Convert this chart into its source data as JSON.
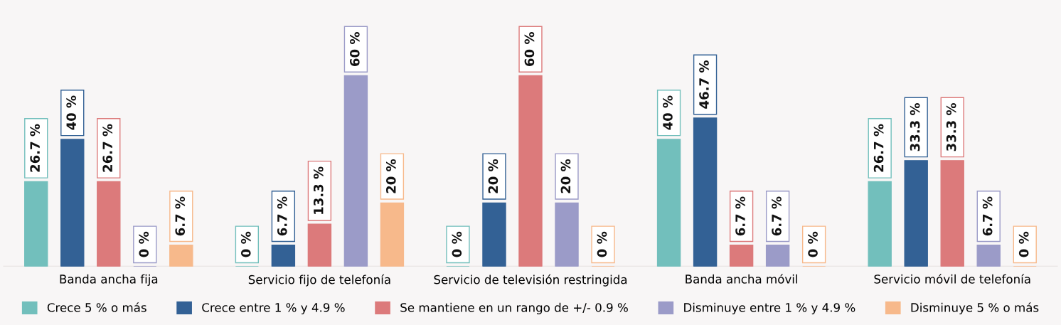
{
  "chart_data": {
    "type": "bar",
    "categories": [
      "Banda ancha fija",
      "Servicio fijo de telefonía",
      "Servicio de televisión restringida",
      "Banda ancha móvil",
      "Servicio móvil de telefonía"
    ],
    "series": [
      {
        "name": "Crece 5 % o más",
        "color": "#72bfbc",
        "values": [
          26.7,
          0,
          0,
          40,
          26.7
        ],
        "value_labels": [
          "26.7 %",
          "0 %",
          "0 %",
          "40 %",
          "26.7 %"
        ]
      },
      {
        "name": "Crece entre 1 % y 4.9 %",
        "color": "#336195",
        "values": [
          40,
          6.7,
          20,
          46.7,
          33.3
        ],
        "value_labels": [
          "40 %",
          "6.7 %",
          "20 %",
          "46.7 %",
          "33.3 %"
        ]
      },
      {
        "name": "Se mantiene en un rango de +/- 0.9 %",
        "color": "#dc7a7b",
        "values": [
          26.7,
          13.3,
          60,
          6.7,
          33.3
        ],
        "value_labels": [
          "26.7 %",
          "13.3 %",
          "60 %",
          "6.7 %",
          "33.3 %"
        ]
      },
      {
        "name": "Disminuye entre 1 % y 4.9 %",
        "color": "#9b9bc8",
        "values": [
          0,
          60,
          20,
          6.7,
          6.7
        ],
        "value_labels": [
          "0 %",
          "60 %",
          "20 %",
          "6.7 %",
          "6.7 %"
        ]
      },
      {
        "name": "Disminuye 5 % o más",
        "color": "#f7b98b",
        "values": [
          6.7,
          20,
          0,
          0,
          0
        ],
        "value_labels": [
          "6.7 %",
          "20 %",
          "0 %",
          "0 %",
          "0 %"
        ]
      }
    ],
    "grid": false,
    "legend": "bottom"
  }
}
